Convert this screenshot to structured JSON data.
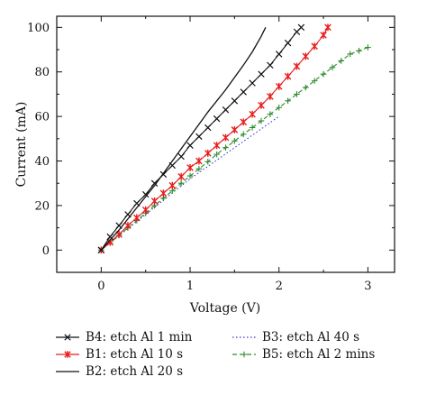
{
  "chart_data": {
    "type": "line",
    "xlabel": "Voltage (V)",
    "ylabel": "Current (mA)",
    "xlim": [
      -0.5,
      3.3
    ],
    "ylim": [
      -10,
      105
    ],
    "xticks": [
      0,
      1,
      2,
      3
    ],
    "yticks": [
      0,
      20,
      40,
      60,
      80,
      100
    ],
    "grid": false,
    "legend_position": "bottom",
    "series": [
      {
        "name": "B4: etch Al 1 min",
        "color": "#111111",
        "line_style": "solid",
        "marker": "x",
        "x": [
          0,
          0.1,
          0.2,
          0.3,
          0.4,
          0.5,
          0.6,
          0.7,
          0.8,
          0.9,
          1.0,
          1.1,
          1.2,
          1.3,
          1.4,
          1.5,
          1.6,
          1.7,
          1.8,
          1.9,
          2.0,
          2.1,
          2.2,
          2.25
        ],
        "y": [
          0,
          6,
          11,
          16,
          21,
          25,
          30,
          34,
          38,
          42,
          47,
          51,
          55,
          59,
          63,
          67,
          71,
          75,
          79,
          83,
          88,
          93,
          98,
          100
        ]
      },
      {
        "name": "B1: etch Al 10 s",
        "color": "#e81c1c",
        "line_style": "solid",
        "marker": "asterisk",
        "x": [
          0,
          0.1,
          0.2,
          0.3,
          0.4,
          0.5,
          0.6,
          0.7,
          0.8,
          0.9,
          1.0,
          1.1,
          1.2,
          1.3,
          1.4,
          1.5,
          1.6,
          1.7,
          1.8,
          1.9,
          2.0,
          2.1,
          2.2,
          2.3,
          2.4,
          2.5,
          2.55
        ],
        "y": [
          0,
          3.5,
          7,
          11,
          14.5,
          18,
          22,
          25.5,
          29,
          33,
          37,
          40,
          43.5,
          47,
          50.5,
          54,
          57.5,
          61,
          65,
          69,
          73.5,
          78,
          82.5,
          87,
          91.5,
          96.5,
          100
        ]
      },
      {
        "name": "B2: etch Al 20 s",
        "color": "#111111",
        "line_style": "solid",
        "marker": "none",
        "x": [
          0,
          0.2,
          0.4,
          0.6,
          0.8,
          1.0,
          1.2,
          1.4,
          1.6,
          1.7,
          1.8,
          1.85
        ],
        "y": [
          0,
          9,
          19,
          29,
          40,
          51,
          62,
          72,
          83,
          89,
          96,
          100
        ]
      },
      {
        "name": "B3: etch Al 40 s",
        "color": "#3b3bcc",
        "line_style": "dotted",
        "marker": "none",
        "x": [
          0,
          0.5,
          1.0,
          1.5,
          2.0
        ],
        "y": [
          0,
          16,
          32,
          46,
          60
        ]
      },
      {
        "name": "B5: etch Al 2 mins",
        "color": "#2e8b2e",
        "line_style": "dashed",
        "marker": "plus",
        "x": [
          0,
          0.1,
          0.2,
          0.3,
          0.4,
          0.5,
          0.6,
          0.7,
          0.8,
          0.9,
          1.0,
          1.1,
          1.2,
          1.3,
          1.4,
          1.5,
          1.6,
          1.7,
          1.8,
          1.9,
          2.0,
          2.1,
          2.2,
          2.3,
          2.4,
          2.5,
          2.6,
          2.7,
          2.8,
          2.9,
          3.0
        ],
        "y": [
          0,
          3.3,
          6.6,
          10,
          13.3,
          16.6,
          20,
          23.3,
          26.6,
          30,
          33.3,
          36.5,
          39.7,
          43,
          46,
          49,
          52,
          55,
          58,
          61,
          64,
          67,
          70,
          73,
          76,
          79,
          82,
          85,
          88,
          89.5,
          91
        ]
      }
    ]
  }
}
